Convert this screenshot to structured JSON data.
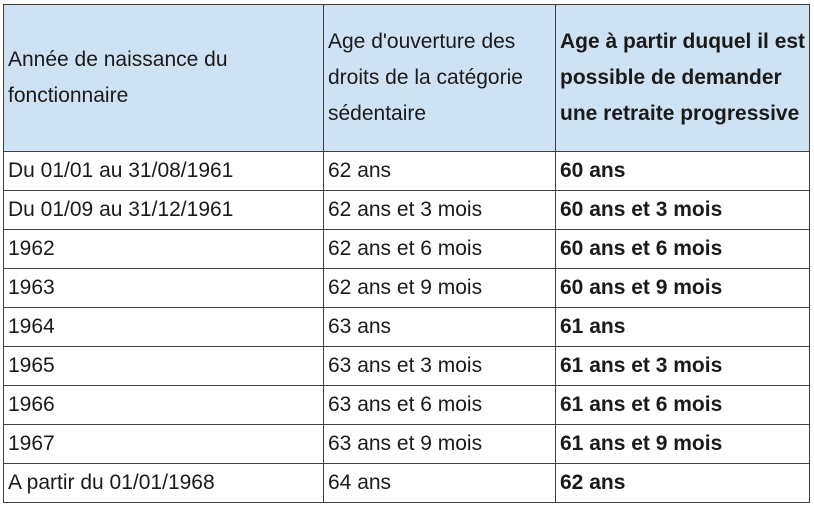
{
  "table": {
    "headers": [
      "Année de naissance du fonctionnaire",
      "Age d'ouverture des droits de la catégorie sédentaire",
      "Age à partir duquel il est possible de demander une retraite progressive"
    ],
    "rows": [
      [
        "Du 01/01 au 31/08/1961",
        "62 ans",
        "60 ans"
      ],
      [
        "Du 01/09 au 31/12/1961",
        "62 ans et 3 mois",
        "60 ans et 3 mois"
      ],
      [
        "1962",
        "62 ans et 6 mois",
        "60 ans et 6 mois"
      ],
      [
        "1963",
        "62 ans et 9 mois",
        "60 ans et 9 mois"
      ],
      [
        "1964",
        "63 ans",
        "61 ans"
      ],
      [
        "1965",
        "63 ans et 3 mois",
        "61 ans et 3 mois"
      ],
      [
        "1966",
        "63 ans et 6 mois",
        "61 ans et 6 mois"
      ],
      [
        "1967",
        "63 ans et 9 mois",
        "61 ans et 9 mois"
      ],
      [
        "A partir du 01/01/1968",
        "64 ans",
        "62 ans"
      ]
    ]
  },
  "colors": {
    "header_background": "#cfe2f3",
    "border": "#3f3f3f",
    "text": "#1a1a1a"
  }
}
